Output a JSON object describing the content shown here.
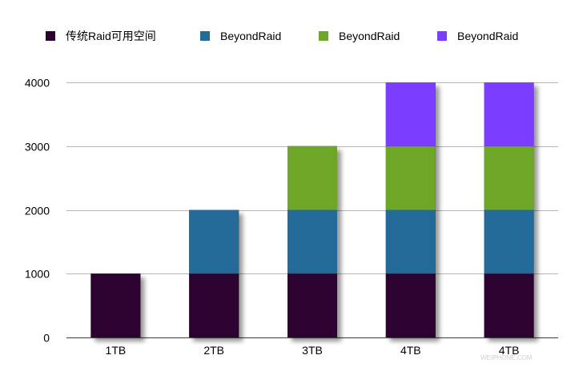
{
  "chart_data": {
    "type": "bar",
    "stacked": true,
    "categories": [
      "1TB",
      "2TB",
      "3TB",
      "4TB",
      "4TB"
    ],
    "series": [
      {
        "name": "传统Raid可用空间",
        "color": "#2c0330",
        "values": [
          1000,
          1000,
          1000,
          1000,
          1000
        ]
      },
      {
        "name": "BeyondRaid",
        "color": "#246a99",
        "values": [
          0,
          1000,
          1000,
          1000,
          1000
        ]
      },
      {
        "name": "BeyondRaid",
        "color": "#6ea628",
        "values": [
          0,
          0,
          1000,
          1000,
          1000
        ]
      },
      {
        "name": "BeyondRaid",
        "color": "#7b3dff",
        "values": [
          0,
          0,
          0,
          1000,
          1000
        ]
      }
    ],
    "yticks": [
      0,
      1000,
      2000,
      3000,
      4000
    ],
    "ylim": [
      0,
      4000
    ],
    "grid": true,
    "legend": "top",
    "title": "",
    "xlabel": "",
    "ylabel": ""
  },
  "watermark": "WEIPHONE.COM"
}
